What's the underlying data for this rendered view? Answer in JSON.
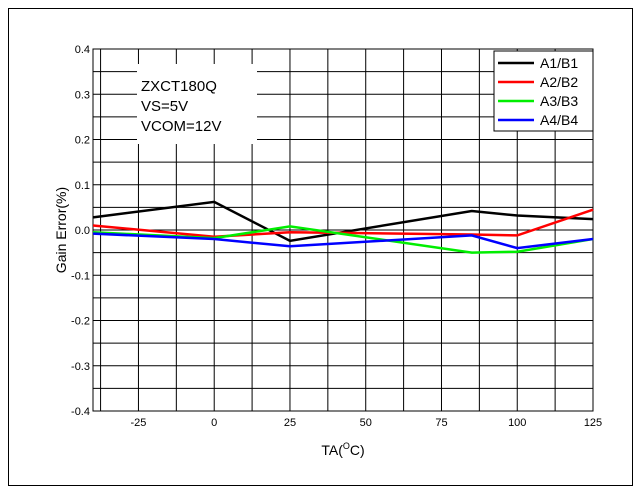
{
  "chart_data": {
    "type": "line",
    "title": "",
    "xlabel": "TA",
    "xlabel_sup": "O",
    "xlabel_suffix": "C)",
    "xlabel_prefix": "TA(",
    "ylabel": "Gain Error(%)",
    "xlim": [
      -40,
      125
    ],
    "ylim": [
      -0.4,
      0.4
    ],
    "xticks": [
      -25,
      0,
      25,
      50,
      75,
      100,
      125
    ],
    "yticks": [
      -0.4,
      -0.3,
      -0.2,
      -0.1,
      0.0,
      0.1,
      0.2,
      0.3,
      0.4
    ],
    "ytick_labels": [
      "-0.4",
      "-0.3",
      "-0.2",
      "-0.1",
      "0.0",
      "0.1",
      "0.2",
      "0.3",
      "0.4"
    ],
    "grid": true,
    "legend_position": "top-right",
    "annotation": [
      "ZXCT180Q",
      "VS=5V",
      "VCOM=12V"
    ],
    "series": [
      {
        "name": "A1/B1",
        "color": "#000000",
        "x": [
          -40,
          0,
          25,
          85,
          100,
          125
        ],
        "y": [
          0.028,
          0.062,
          -0.024,
          0.042,
          0.032,
          0.024
        ]
      },
      {
        "name": "A2/B2",
        "color": "#ff0000",
        "x": [
          -40,
          0,
          25,
          85,
          100,
          125
        ],
        "y": [
          0.01,
          -0.015,
          -0.005,
          -0.01,
          -0.012,
          0.045
        ]
      },
      {
        "name": "A3/B3",
        "color": "#00ee00",
        "x": [
          -40,
          0,
          25,
          85,
          100,
          125
        ],
        "y": [
          -0.005,
          -0.018,
          0.008,
          -0.05,
          -0.048,
          -0.02
        ]
      },
      {
        "name": "A4/B4",
        "color": "#0000ff",
        "x": [
          -40,
          0,
          25,
          85,
          100,
          125
        ],
        "y": [
          -0.008,
          -0.02,
          -0.036,
          -0.012,
          -0.04,
          -0.02
        ]
      }
    ]
  }
}
